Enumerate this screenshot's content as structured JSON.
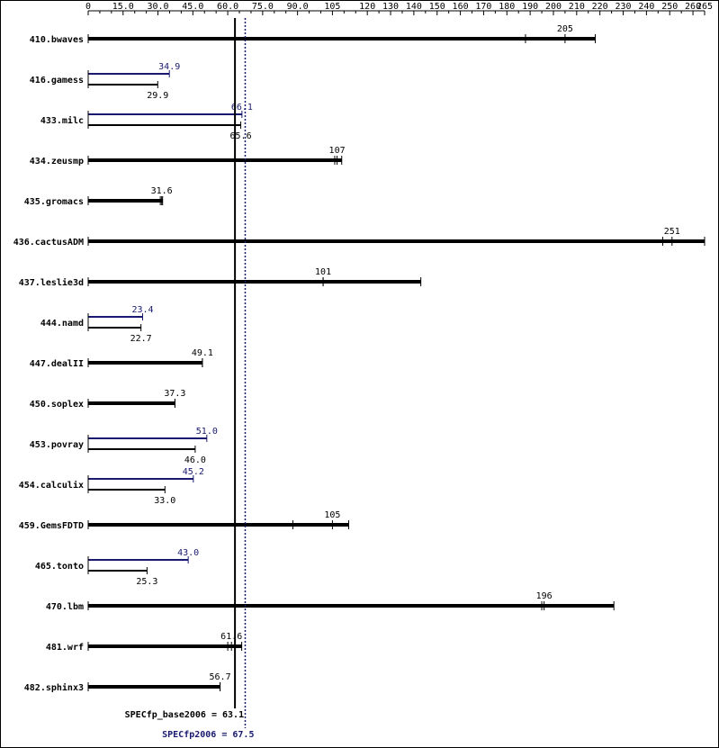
{
  "chart_data": {
    "type": "bar",
    "orientation": "horizontal",
    "x_ticks": [
      "0",
      "15.0",
      "30.0",
      "45.0",
      "60.0",
      "75.0",
      "90.0",
      "105",
      "120",
      "130",
      "140",
      "150",
      "160",
      "170",
      "180",
      "190",
      "200",
      "210",
      "220",
      "230",
      "240",
      "250",
      "260",
      "265"
    ],
    "x_tick_values": [
      0,
      15,
      30,
      45,
      60,
      75,
      90,
      105,
      120,
      130,
      140,
      150,
      160,
      170,
      180,
      190,
      200,
      210,
      220,
      230,
      240,
      250,
      260,
      265
    ],
    "xlim": [
      0,
      265
    ],
    "benchmarks": [
      {
        "name": "410.bwaves",
        "base": 205,
        "base_label": "205",
        "base_min": 188,
        "base_max": 218
      },
      {
        "name": "416.gamess",
        "peak": 34.9,
        "peak_label": "34.9",
        "base": 29.9,
        "base_label": "29.9"
      },
      {
        "name": "433.milc",
        "peak": 66.1,
        "peak_label": "66.1",
        "base": 65.6,
        "base_label": "65.6"
      },
      {
        "name": "434.zeusmp",
        "base": 107,
        "base_label": "107",
        "base_min": 106,
        "base_max": 109
      },
      {
        "name": "435.gromacs",
        "base": 31.6,
        "base_label": "31.6",
        "base_min": 31,
        "base_max": 32
      },
      {
        "name": "436.cactusADM",
        "base": 251,
        "base_label": "251",
        "base_min": 247,
        "base_max": 265
      },
      {
        "name": "437.leslie3d",
        "base": 101,
        "base_label": "101",
        "base_min": 101,
        "base_max": 143
      },
      {
        "name": "444.namd",
        "peak": 23.4,
        "peak_label": "23.4",
        "base": 22.7,
        "base_label": "22.7"
      },
      {
        "name": "447.dealII",
        "base": 49.1,
        "base_label": "49.1"
      },
      {
        "name": "450.soplex",
        "base": 37.3,
        "base_label": "37.3"
      },
      {
        "name": "453.povray",
        "peak": 51.0,
        "peak_label": "51.0",
        "base": 46.0,
        "base_label": "46.0"
      },
      {
        "name": "454.calculix",
        "peak": 45.2,
        "peak_label": "45.2",
        "base": 33.0,
        "base_label": "33.0"
      },
      {
        "name": "459.GemsFDTD",
        "base": 105,
        "base_label": "105",
        "base_min": 88,
        "base_max": 112
      },
      {
        "name": "465.tonto",
        "peak": 43.0,
        "peak_label": "43.0",
        "base": 25.3,
        "base_label": "25.3"
      },
      {
        "name": "470.lbm",
        "base": 196,
        "base_label": "196",
        "base_min": 195,
        "base_max": 226
      },
      {
        "name": "481.wrf",
        "base": 61.6,
        "base_label": "61.6",
        "base_min": 60,
        "base_max": 66
      },
      {
        "name": "482.sphinx3",
        "base": 56.7,
        "base_label": "56.7"
      }
    ],
    "reference_lines": [
      {
        "label": "SPECfp_base2006 = 63.1",
        "value": 63.1,
        "style": "solid",
        "color": "#000000"
      },
      {
        "label": "SPECfp2006 = 67.5",
        "value": 67.5,
        "style": "dotted",
        "color": "#191970"
      }
    ],
    "colors": {
      "base": "#000000",
      "peak": "#191970"
    }
  }
}
